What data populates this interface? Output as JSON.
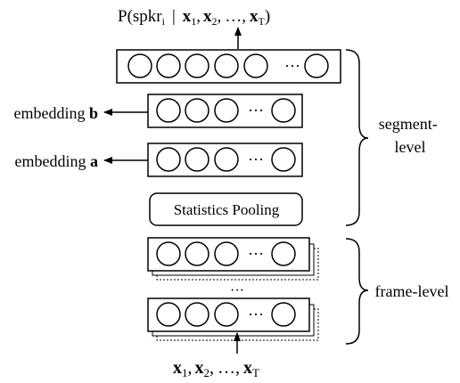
{
  "output": {
    "prefix": "P(spkr",
    "speaker_sub": "i",
    "bar": "|",
    "x": "x",
    "sub1": "1",
    "sub2": "2",
    "sep": ",",
    "ellipsis": "…",
    "subT": "T",
    "close": ")"
  },
  "layers": {
    "dots": "···",
    "stack_ellipsis": "···"
  },
  "labels": {
    "embedding_b_word": "embedding",
    "embedding_b_letter": "b",
    "embedding_a_word": "embedding",
    "embedding_a_letter": "a",
    "statistics_pooling": "Statistics Pooling",
    "segment_level_1": "segment-",
    "segment_level_2": "level",
    "frame_level": "frame-level"
  },
  "input": {
    "x": "x",
    "sub1": "1",
    "sub2": "2",
    "sep": ",",
    "ellipsis": "…",
    "subT": "T"
  }
}
